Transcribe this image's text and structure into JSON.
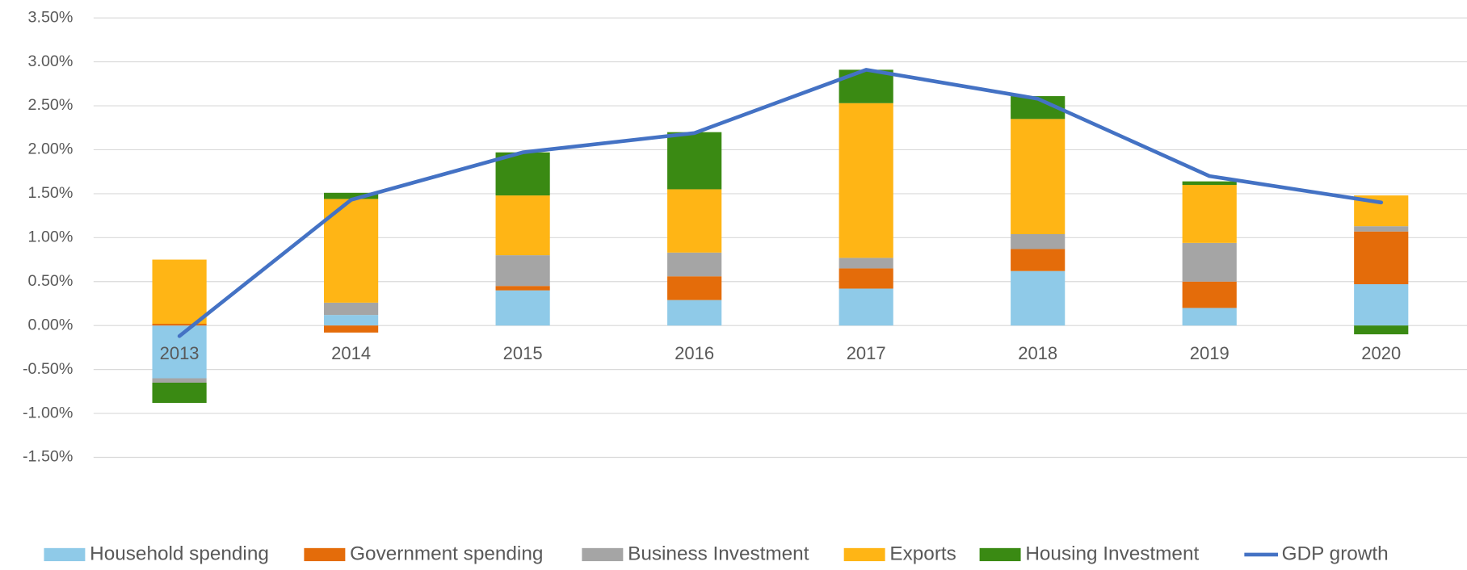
{
  "chart_data": {
    "type": "bar",
    "stacked": true,
    "categories": [
      "2013",
      "2014",
      "2015",
      "2016",
      "2017",
      "2018",
      "2019",
      "2020"
    ],
    "series": [
      {
        "name": "Household spending",
        "color": "#8fcae8",
        "values": [
          -0.6,
          0.12,
          0.4,
          0.29,
          0.42,
          0.62,
          0.2,
          0.47
        ]
      },
      {
        "name": "Government spending",
        "color": "#e46c0a",
        "values": [
          0.02,
          -0.08,
          0.05,
          0.27,
          0.23,
          0.25,
          0.3,
          0.6
        ]
      },
      {
        "name": "Business Investment",
        "color": "#a5a5a5",
        "values": [
          -0.05,
          0.14,
          0.35,
          0.27,
          0.12,
          0.17,
          0.44,
          0.06
        ]
      },
      {
        "name": "Exports",
        "color": "#ffb515",
        "values": [
          0.73,
          1.18,
          0.68,
          0.72,
          1.76,
          1.31,
          0.66,
          0.35
        ]
      },
      {
        "name": "Housing Investment",
        "color": "#3a8a13",
        "values": [
          -0.23,
          0.07,
          0.49,
          0.65,
          0.38,
          0.26,
          0.04,
          -0.1
        ]
      },
      {
        "name": "GDP growth",
        "color": "#4472c4",
        "type": "line",
        "values": [
          -0.12,
          1.43,
          1.97,
          2.19,
          2.91,
          2.58,
          1.7,
          1.4
        ]
      }
    ],
    "ylim": [
      -1.5,
      3.5
    ],
    "yticks": [
      {
        "value": -1.5,
        "label": "-1.50%"
      },
      {
        "value": -1.0,
        "label": "-1.00%"
      },
      {
        "value": -0.5,
        "label": "-0.50%"
      },
      {
        "value": 0,
        "label": "0.00%"
      },
      {
        "value": 0.5,
        "label": "0.50%"
      },
      {
        "value": 1.0,
        "label": "1.00%"
      },
      {
        "value": 1.5,
        "label": "1.50%"
      },
      {
        "value": 2.0,
        "label": "2.00%"
      },
      {
        "value": 2.5,
        "label": "2.50%"
      },
      {
        "value": 3.0,
        "label": "3.00%"
      },
      {
        "value": 3.5,
        "label": "3.50%"
      }
    ],
    "grid": true,
    "legend": "bottom"
  }
}
